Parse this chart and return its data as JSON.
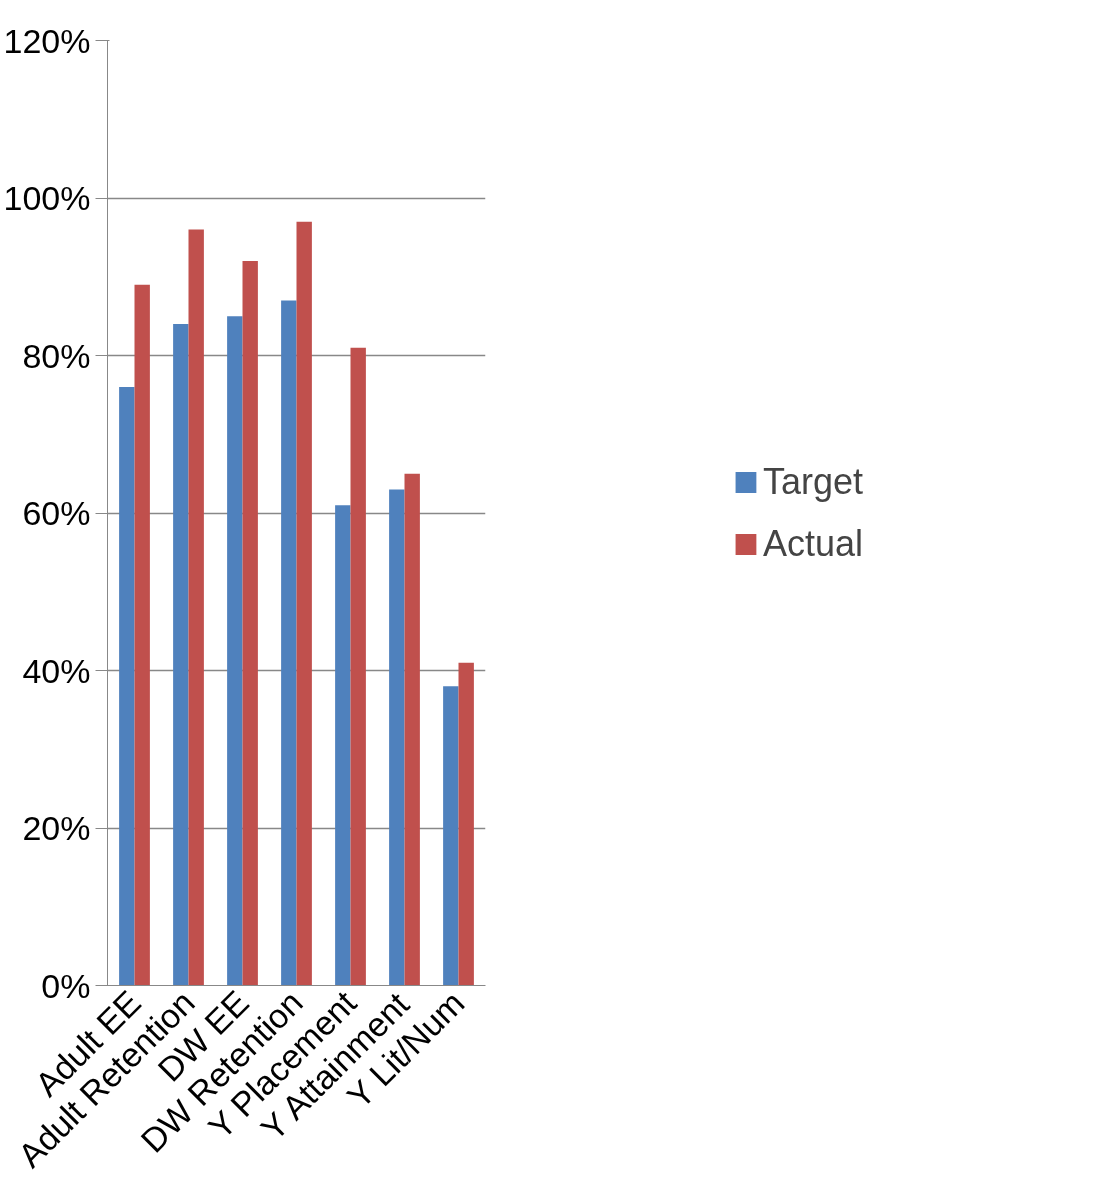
{
  "chart_data": {
    "type": "bar",
    "categories": [
      "Adult EE",
      "Adult Retention",
      "DW EE",
      "DW Retention",
      "Y Placement",
      "Y Attainment",
      "Y Lit/Num"
    ],
    "series": [
      {
        "name": "Target",
        "color": "#4f81bd",
        "values": [
          76,
          84,
          85,
          87,
          61,
          63,
          38
        ]
      },
      {
        "name": "Actual",
        "color": "#c0504d",
        "values": [
          89,
          96,
          92,
          97,
          81,
          65,
          41
        ]
      }
    ],
    "ylim": [
      0,
      120
    ],
    "yticks": [
      {
        "value": 0,
        "label": "0%"
      },
      {
        "value": 20,
        "label": "20%"
      },
      {
        "value": 40,
        "label": "40%"
      },
      {
        "value": 60,
        "label": "60%"
      },
      {
        "value": 80,
        "label": "80%"
      },
      {
        "value": 100,
        "label": "100%"
      },
      {
        "value": 120,
        "label": "120%"
      }
    ],
    "grid": "y",
    "legend": "right"
  }
}
